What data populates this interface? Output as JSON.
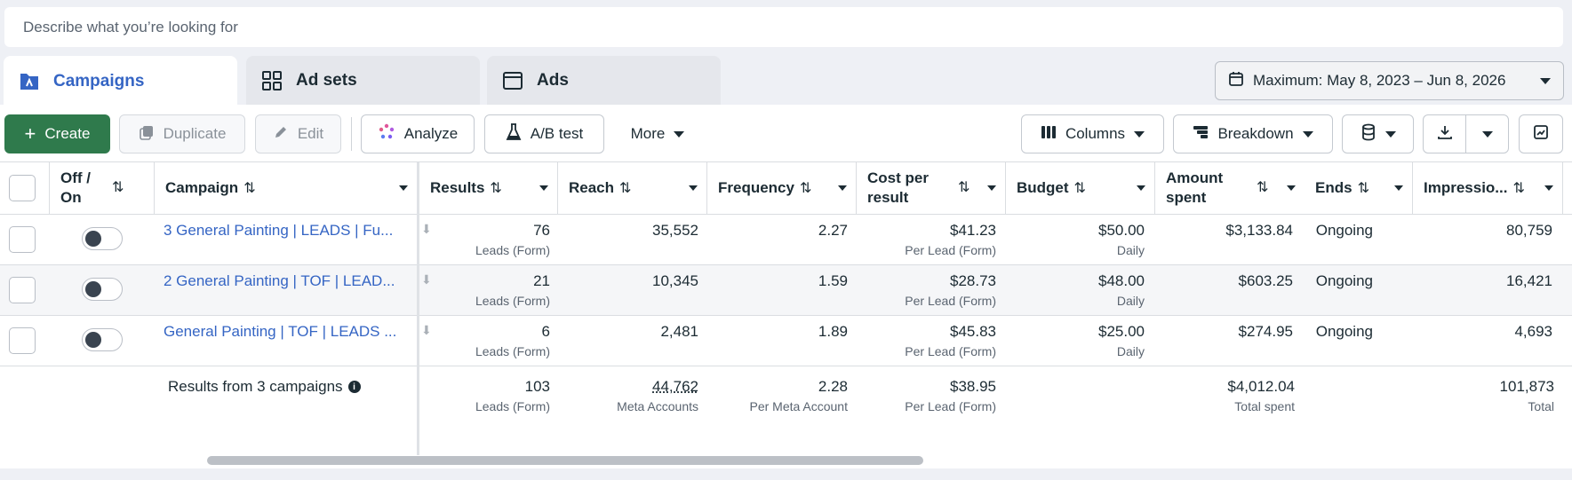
{
  "search": {
    "placeholder": "Describe what you’re looking for"
  },
  "tabs": [
    {
      "label": "Campaigns",
      "icon": "campaigns-icon"
    },
    {
      "label": "Ad sets",
      "icon": "grid-icon"
    },
    {
      "label": "Ads",
      "icon": "window-icon"
    }
  ],
  "date_range": {
    "label": "Maximum: May 8, 2023 – Jun 8, 2026"
  },
  "toolbar": {
    "create": "Create",
    "duplicate": "Duplicate",
    "edit": "Edit",
    "analyze": "Analyze",
    "ab_test": "A/B test",
    "more": "More",
    "columns": "Columns",
    "breakdown": "Breakdown"
  },
  "columns": {
    "off_on": "Off / On",
    "campaign": "Campaign",
    "results": "Results",
    "reach": "Reach",
    "frequency": "Frequency",
    "cost_per_result": "Cost per result",
    "budget": "Budget",
    "amount_spent": "Amount spent",
    "ends": "Ends",
    "impressions": "Impressio..."
  },
  "rows": [
    {
      "campaign": "3 General Painting | LEADS | Fu...",
      "results": "76",
      "results_sub": "Leads (Form)",
      "reach": "35,552",
      "frequency": "2.27",
      "cpr": "$41.23",
      "cpr_sub": "Per Lead (Form)",
      "budget": "$50.00",
      "budget_sub": "Daily",
      "spent": "$3,133.84",
      "ends": "Ongoing",
      "impressions": "80,759"
    },
    {
      "campaign": "2 General Painting | TOF | LEAD...",
      "results": "21",
      "results_sub": "Leads (Form)",
      "reach": "10,345",
      "frequency": "1.59",
      "cpr": "$28.73",
      "cpr_sub": "Per Lead (Form)",
      "budget": "$48.00",
      "budget_sub": "Daily",
      "spent": "$603.25",
      "ends": "Ongoing",
      "impressions": "16,421"
    },
    {
      "campaign": "General Painting | TOF | LEADS ...",
      "results": "6",
      "results_sub": "Leads (Form)",
      "reach": "2,481",
      "frequency": "1.89",
      "cpr": "$45.83",
      "cpr_sub": "Per Lead (Form)",
      "budget": "$25.00",
      "budget_sub": "Daily",
      "spent": "$274.95",
      "ends": "Ongoing",
      "impressions": "4,693"
    }
  ],
  "totals": {
    "label": "Results from 3 campaigns",
    "results": "103",
    "results_sub": "Leads (Form)",
    "reach": "44,762",
    "reach_sub": "Meta Accounts",
    "frequency": "2.28",
    "frequency_sub": "Per Meta Account",
    "cpr": "$38.95",
    "cpr_sub": "Per Lead (Form)",
    "spent": "$4,012.04",
    "spent_sub": "Total spent",
    "impressions": "101,873",
    "impressions_sub": "Total"
  }
}
